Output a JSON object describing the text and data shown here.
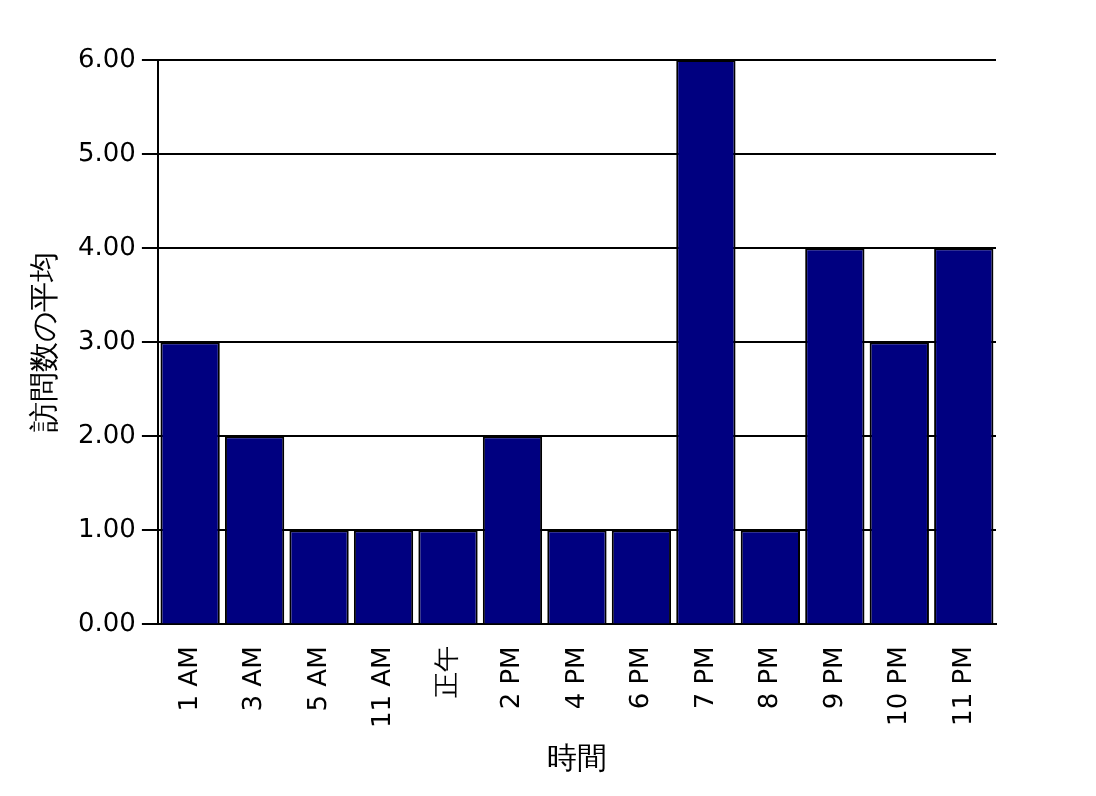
{
  "chart_data": {
    "type": "bar",
    "xlabel": "時間",
    "ylabel": "訪問数の平均",
    "categories": [
      "1 AM",
      "3 AM",
      "5 AM",
      "11 AM",
      "正午",
      "2 PM",
      "4 PM",
      "6 PM",
      "7 PM",
      "8 PM",
      "9 PM",
      "10 PM",
      "11 PM"
    ],
    "values": [
      3,
      2,
      1,
      1,
      1,
      2,
      1,
      1,
      6,
      1,
      4,
      3,
      4
    ],
    "color": "#000080",
    "ylim": [
      0,
      6
    ],
    "yticks": [
      {
        "value": 0,
        "label": "0.00"
      },
      {
        "value": 1,
        "label": "1.00"
      },
      {
        "value": 2,
        "label": "2.00"
      },
      {
        "value": 3,
        "label": "3.00"
      },
      {
        "value": 4,
        "label": "4.00"
      },
      {
        "value": 5,
        "label": "5.00"
      },
      {
        "value": 6,
        "label": "6.00"
      }
    ],
    "grid": "y"
  }
}
